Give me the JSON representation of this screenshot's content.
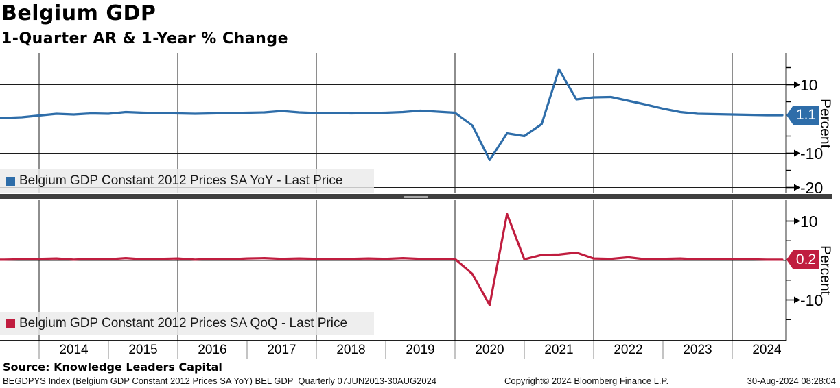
{
  "header": {
    "title": "Belgium GDP",
    "subtitle": "1-Quarter AR & 1-Year % Change"
  },
  "top_panel": {
    "legend_label": "Belgium GDP Constant 2012 Prices SA YoY - Last Price",
    "last_price": "1.1",
    "axis_label": "Percent",
    "line_color": "#2e6da9"
  },
  "bottom_panel": {
    "legend_label": "Belgium GDP Constant 2012 Prices SA QoQ - Last Price",
    "last_price": "0.2",
    "axis_label": "Percent",
    "line_color": "#c01d3f"
  },
  "x_axis": {
    "year_labels": [
      "2014",
      "2015",
      "2016",
      "2017",
      "2018",
      "2019",
      "2020",
      "2021",
      "2022",
      "2023",
      "2024"
    ]
  },
  "footer": {
    "source": "Source: Knowledge Leaders Capital",
    "index_info": "BEGDPYS Index (Belgium GDP Constant 2012 Prices SA YoY) BEL GDP  Quarterly 07JUN2013-30AUG2024",
    "copyright": "Copyright© 2024 Bloomberg Finance L.P.",
    "timestamp": "30-Aug-2024 08:28:04"
  },
  "chart_data": {
    "type": "line",
    "title": "Belgium GDP",
    "subtitle": "1-Quarter AR & 1-Year % Change",
    "x_frequency": "quarterly",
    "x_start": "2013-Q2",
    "x_end": "2024-Q2",
    "x_gridline_years": [
      2014,
      2016,
      2018,
      2020,
      2022,
      2024
    ],
    "legend_position": "lower-left-inside",
    "grid": true,
    "panels": [
      {
        "name": "1-Year % Change (YoY)",
        "ylabel": "Percent",
        "yticks": [
          10,
          0,
          -10,
          -20
        ],
        "ylim": [
          -20.8,
          18.7
        ],
        "last_price": 1.1,
        "series": {
          "name": "Belgium GDP Constant 2012 Prices SA YoY - Last Price",
          "color": "#2e6da9",
          "values": [
            0.3,
            0.5,
            1.0,
            1.5,
            1.3,
            1.6,
            1.5,
            2.0,
            1.8,
            1.7,
            1.6,
            1.5,
            1.6,
            1.7,
            1.8,
            1.9,
            2.3,
            1.9,
            1.7,
            1.7,
            1.6,
            1.7,
            1.8,
            2.0,
            2.4,
            2.1,
            1.8,
            -1.9,
            -12.0,
            -4.2,
            -5.0,
            -1.5,
            14.5,
            5.7,
            6.3,
            6.4,
            5.3,
            4.2,
            3.0,
            2.0,
            1.5,
            1.4,
            1.3,
            1.2,
            1.1
          ]
        }
      },
      {
        "name": "1-Quarter AR (QoQ)",
        "ylabel": "Percent",
        "yticks": [
          10,
          0,
          -10
        ],
        "ylim": [
          -20.3,
          15.3
        ],
        "last_price": 0.2,
        "series": {
          "name": "Belgium GDP Constant 2012 Prices SA QoQ - Last Price",
          "color": "#c01d3f",
          "values": [
            0.2,
            0.3,
            0.4,
            0.5,
            0.2,
            0.4,
            0.3,
            0.6,
            0.3,
            0.4,
            0.5,
            0.2,
            0.4,
            0.3,
            0.5,
            0.6,
            0.4,
            0.5,
            0.4,
            0.3,
            0.4,
            0.5,
            0.4,
            0.6,
            0.4,
            0.3,
            0.4,
            -3.4,
            -11.3,
            11.8,
            0.3,
            1.4,
            1.5,
            2.0,
            0.5,
            0.4,
            0.8,
            0.3,
            0.4,
            0.5,
            0.3,
            0.4,
            0.4,
            0.3,
            0.2
          ]
        }
      }
    ]
  }
}
